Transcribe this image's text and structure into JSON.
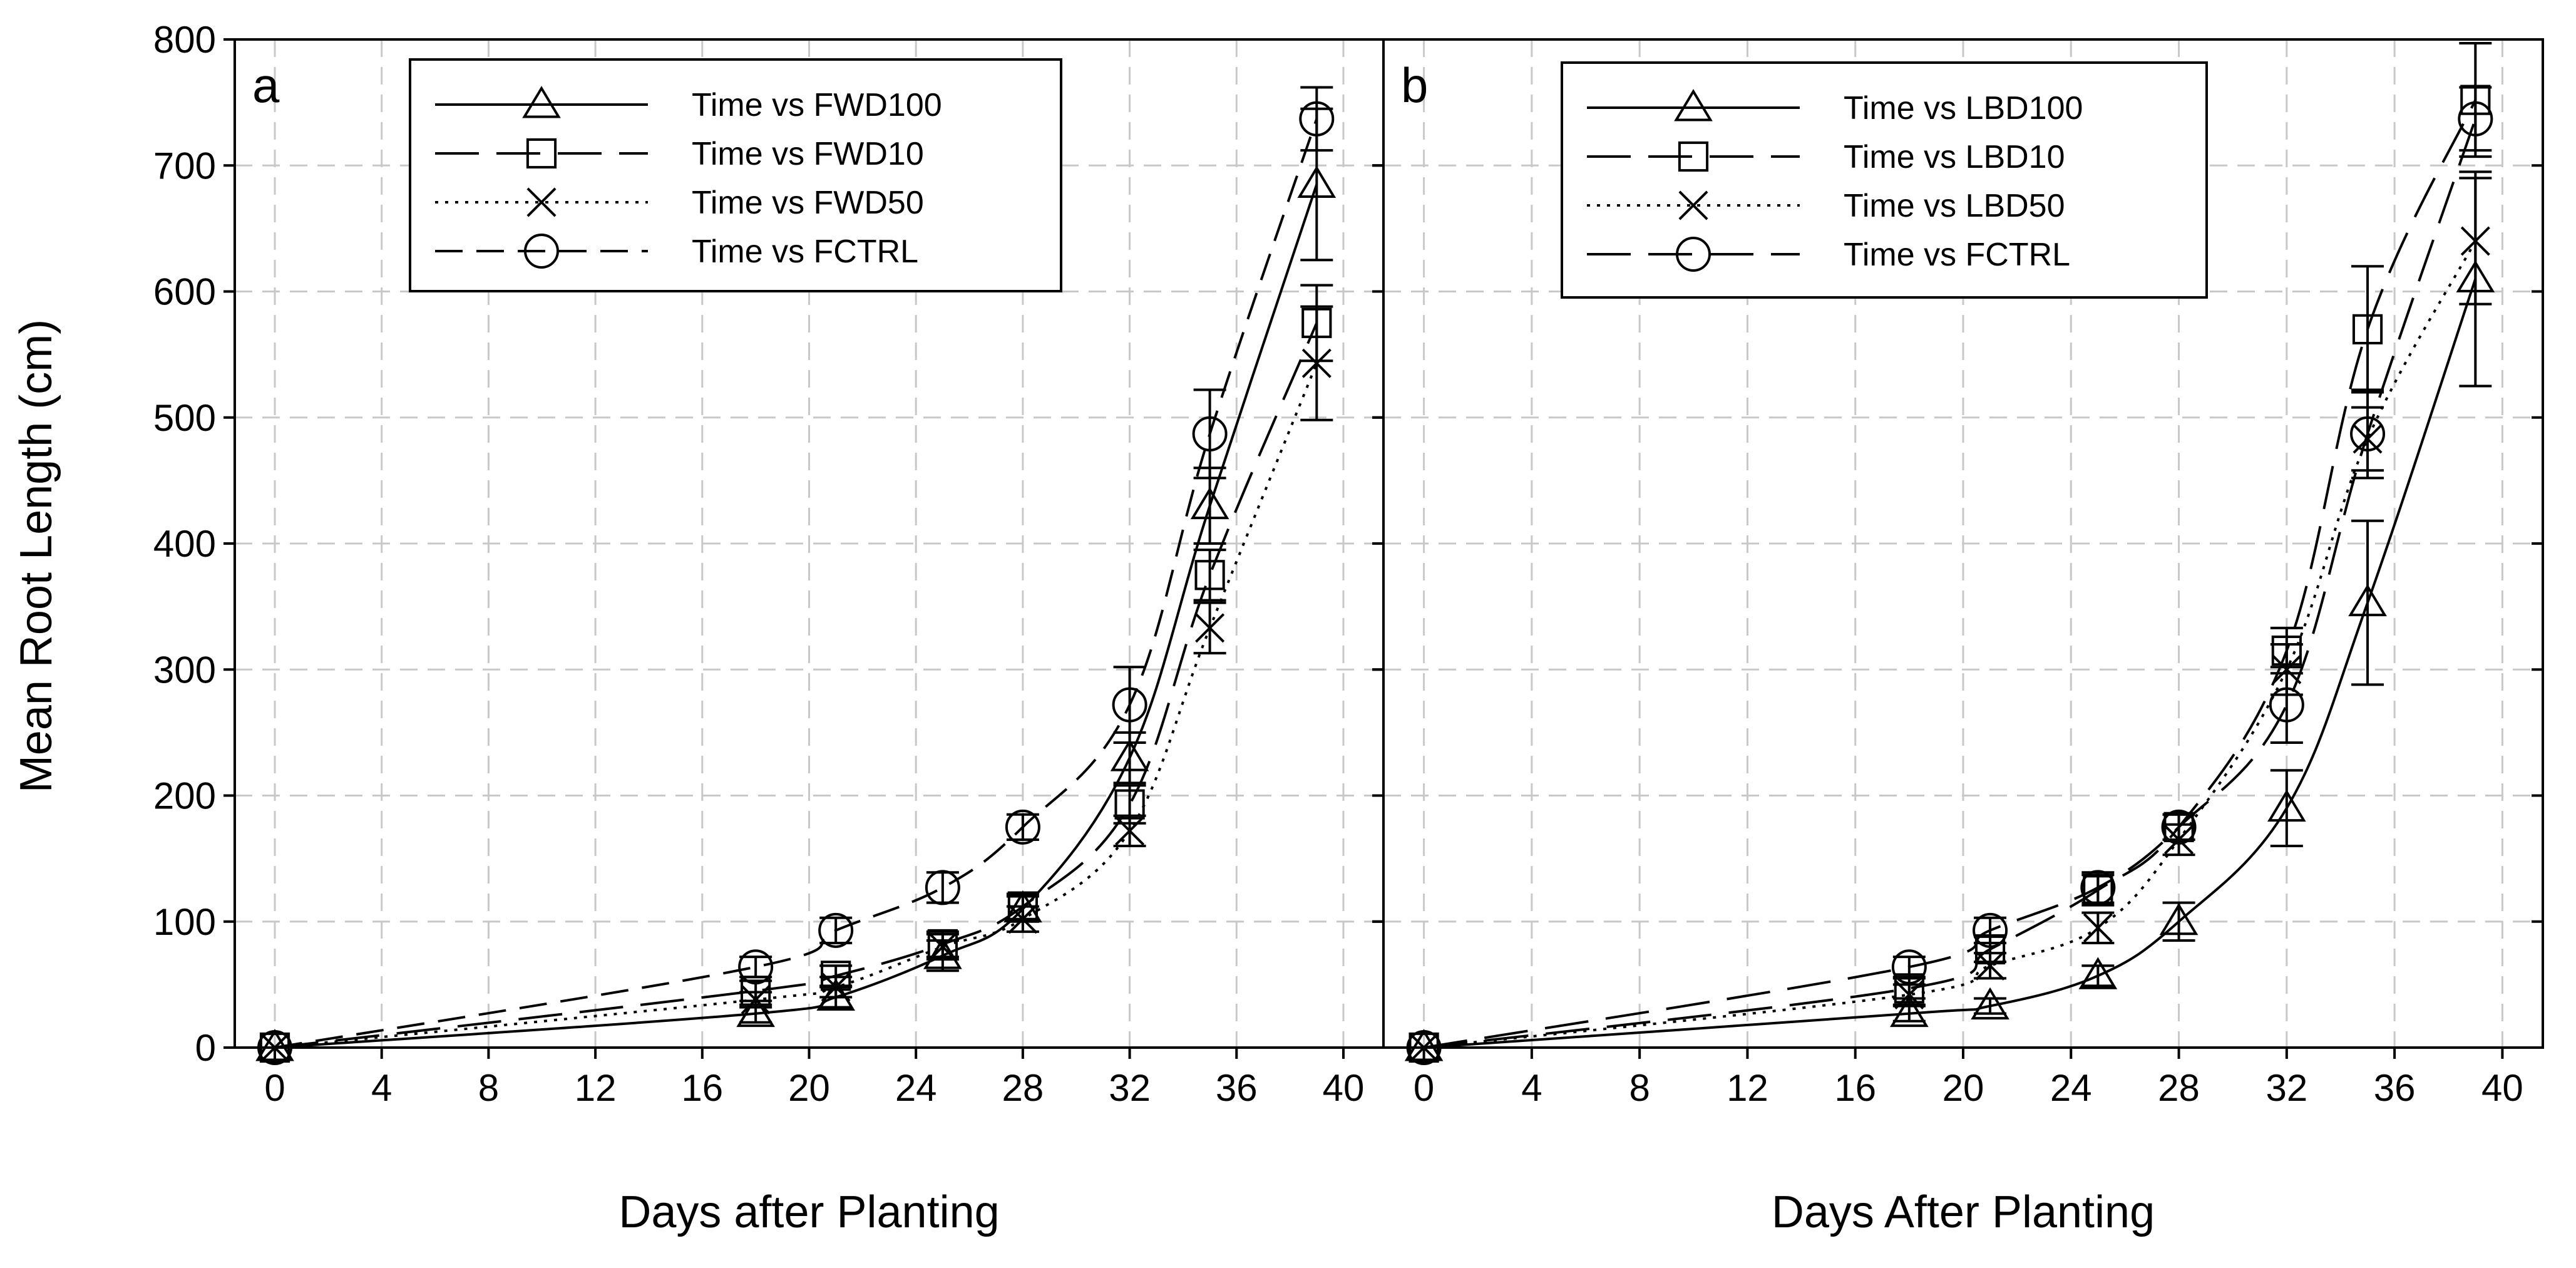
{
  "figure": {
    "ylabel": "Mean Root Length (cm)"
  },
  "chart_data": [
    {
      "type": "line",
      "panel_label": "a",
      "xlabel": "Days after Planting",
      "ylabel": "Mean Root Length (cm)",
      "xlim": [
        -1.5,
        41.5
      ],
      "ylim": [
        0,
        800
      ],
      "xticks": [
        0,
        4,
        8,
        12,
        16,
        20,
        24,
        28,
        32,
        36,
        40
      ],
      "yticks": [
        0,
        100,
        200,
        300,
        400,
        500,
        600,
        700,
        800
      ],
      "grid": true,
      "legend_position": "top-center",
      "x": [
        0,
        18,
        21,
        25,
        28,
        32,
        35,
        39
      ],
      "series": [
        {
          "name": "Time vs FWD100",
          "marker": "triangle",
          "line": "solid",
          "values": [
            0,
            27,
            40,
            73,
            110,
            230,
            430,
            685
          ],
          "errors": [
            0,
            7,
            8,
            12,
            10,
            20,
            30,
            60
          ]
        },
        {
          "name": "Time vs FWD10",
          "marker": "square",
          "line": "long-dash",
          "values": [
            0,
            45,
            57,
            82,
            112,
            193,
            375,
            575
          ],
          "errors": [
            0,
            8,
            8,
            10,
            10,
            15,
            20,
            30
          ]
        },
        {
          "name": "Time vs FWD50",
          "marker": "x",
          "line": "dotted",
          "values": [
            0,
            38,
            48,
            80,
            102,
            172,
            333,
            543
          ],
          "errors": [
            0,
            6,
            8,
            10,
            10,
            12,
            20,
            45
          ]
        },
        {
          "name": "Time vs FCTRL",
          "marker": "circle",
          "line": "dashed",
          "values": [
            0,
            64,
            93,
            127,
            175,
            272,
            487,
            737
          ],
          "errors": [
            0,
            8,
            10,
            12,
            10,
            30,
            35,
            25
          ]
        }
      ]
    },
    {
      "type": "line",
      "panel_label": "b",
      "xlabel": "Days After Planting",
      "ylabel": "Mean Root Length (cm)",
      "xlim": [
        -1.5,
        41.5
      ],
      "ylim": [
        0,
        800
      ],
      "xticks": [
        0,
        4,
        8,
        12,
        16,
        20,
        24,
        28,
        32,
        36,
        40
      ],
      "yticks": [
        0,
        100,
        200,
        300,
        400,
        500,
        600,
        700,
        800
      ],
      "grid": true,
      "legend_position": "top-center",
      "x": [
        0,
        18,
        21,
        25,
        28,
        32,
        35,
        39
      ],
      "series": [
        {
          "name": "Time vs LBD100",
          "marker": "triangle",
          "line": "solid",
          "values": [
            0,
            27,
            33,
            57,
            100,
            190,
            353,
            610
          ],
          "errors": [
            0,
            6,
            6,
            8,
            15,
            30,
            65,
            85
          ]
        },
        {
          "name": "Time vs LBD10",
          "marker": "square",
          "line": "long-dash",
          "values": [
            0,
            47,
            78,
            125,
            175,
            315,
            570,
            752
          ],
          "errors": [
            0,
            8,
            10,
            12,
            10,
            18,
            50,
            45
          ]
        },
        {
          "name": "Time vs LBD50",
          "marker": "x",
          "line": "dotted",
          "values": [
            0,
            42,
            65,
            95,
            165,
            300,
            483,
            640
          ],
          "errors": [
            0,
            8,
            10,
            12,
            12,
            20,
            25,
            50
          ]
        },
        {
          "name": "Time vs FCTRL",
          "marker": "circle",
          "line": "long-dash",
          "values": [
            0,
            64,
            93,
            127,
            175,
            272,
            487,
            737
          ],
          "errors": [
            0,
            8,
            10,
            12,
            10,
            30,
            35,
            25
          ]
        }
      ]
    }
  ]
}
